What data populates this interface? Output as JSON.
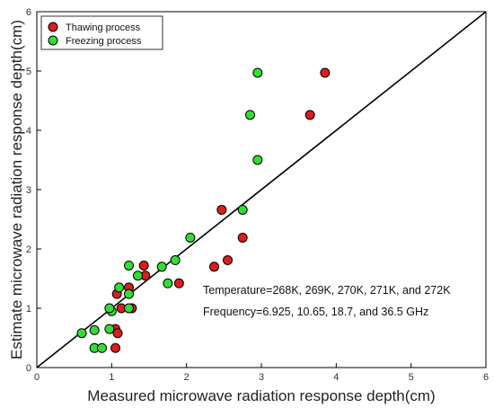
{
  "chart_data": {
    "type": "scatter",
    "xlabel": "Measured microwave radiation response depth(cm)",
    "ylabel": "Estimate microwave radiation response depth(cm)",
    "xlim": [
      0,
      6
    ],
    "ylim": [
      0,
      6
    ],
    "xticks": [
      "0",
      "1",
      "2",
      "3",
      "4",
      "5",
      "6"
    ],
    "yticks": [
      "0",
      "1",
      "2",
      "3",
      "4",
      "5",
      "6"
    ],
    "grid": false,
    "legend_position": "top-left",
    "reference_line": {
      "from": [
        0,
        0
      ],
      "to": [
        6,
        6
      ],
      "color": "#000000"
    },
    "series": [
      {
        "name": "Thawing process",
        "color": "#dd1c1c",
        "points": [
          [
            3.85,
            4.97
          ],
          [
            3.65,
            4.26
          ],
          [
            2.47,
            2.66
          ],
          [
            2.75,
            2.19
          ],
          [
            2.55,
            1.81
          ],
          [
            2.37,
            1.7
          ],
          [
            1.9,
            1.42
          ],
          [
            1.43,
            1.72
          ],
          [
            1.45,
            1.55
          ],
          [
            1.27,
            1.0
          ],
          [
            1.23,
            1.35
          ],
          [
            1.13,
            1.0
          ],
          [
            1.07,
            1.24
          ],
          [
            1.05,
            0.65
          ],
          [
            1.08,
            0.58
          ],
          [
            1.05,
            0.33
          ]
        ]
      },
      {
        "name": "Freezing process",
        "color": "#33dd33",
        "points": [
          [
            2.95,
            4.97
          ],
          [
            2.85,
            4.26
          ],
          [
            2.95,
            3.5
          ],
          [
            2.75,
            2.66
          ],
          [
            2.05,
            2.19
          ],
          [
            1.85,
            1.81
          ],
          [
            1.67,
            1.7
          ],
          [
            1.75,
            1.42
          ],
          [
            1.23,
            1.72
          ],
          [
            1.35,
            1.55
          ],
          [
            1.23,
            1.24
          ],
          [
            1.23,
            1.0
          ],
          [
            1.1,
            1.35
          ],
          [
            1.0,
            0.95
          ],
          [
            0.97,
            1.0
          ],
          [
            0.97,
            0.65
          ],
          [
            0.77,
            0.63
          ],
          [
            0.6,
            0.58
          ],
          [
            0.77,
            0.33
          ],
          [
            0.87,
            0.33
          ]
        ]
      }
    ],
    "annotations": [
      "Temperature=268K, 269K, 270K, 271K, and 272K",
      "Frequency=6.925, 10.65, 18.7, and 36.5 GHz"
    ]
  }
}
